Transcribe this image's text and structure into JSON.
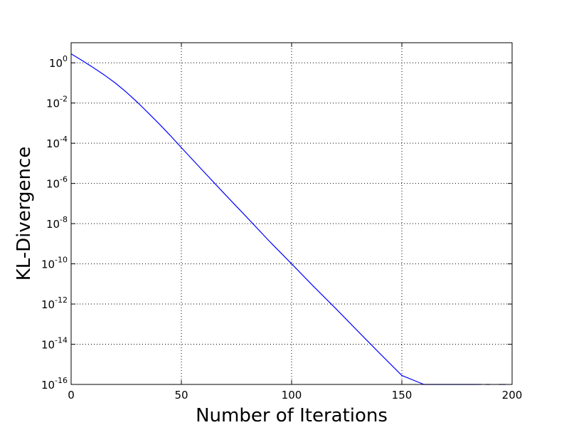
{
  "chart_data": {
    "type": "line",
    "title": "",
    "xlabel": "Number of Iterations",
    "ylabel": "KL-Divergence",
    "xlim": [
      0,
      200
    ],
    "ylim": [
      1e-16,
      10
    ],
    "yscale": "log",
    "grid": true,
    "grid_style": "dotted",
    "line_color": "#0000ff",
    "xticks": [
      {
        "value": 0,
        "label": "0"
      },
      {
        "value": 50,
        "label": "50"
      },
      {
        "value": 100,
        "label": "100"
      },
      {
        "value": 150,
        "label": "150"
      },
      {
        "value": 200,
        "label": "200"
      }
    ],
    "yticks": [
      {
        "value": 1.0,
        "base": "10",
        "exp": "0"
      },
      {
        "value": 0.01,
        "base": "10",
        "exp": "-2"
      },
      {
        "value": 0.0001,
        "base": "10",
        "exp": "-4"
      },
      {
        "value": 1e-06,
        "base": "10",
        "exp": "-6"
      },
      {
        "value": 1e-08,
        "base": "10",
        "exp": "-8"
      },
      {
        "value": 1e-10,
        "base": "10",
        "exp": "-10"
      },
      {
        "value": 1e-12,
        "base": "10",
        "exp": "-12"
      },
      {
        "value": 1e-14,
        "base": "10",
        "exp": "-14"
      },
      {
        "value": 1e-16,
        "base": "10",
        "exp": "-16"
      }
    ],
    "series": [
      {
        "segments": [
          {
            "x": [
              0,
              5,
              10,
              15,
              20,
              25,
              30,
              35,
              40,
              45,
              50,
              60,
              70,
              80,
              90,
              100,
              110,
              120,
              130,
              140,
              150,
              160,
              165,
              170,
              172,
              174,
              176,
              178,
              180,
              182,
              183,
              184
            ],
            "y": [
              2.8,
              1.3,
              0.58,
              0.25,
              0.1,
              0.035,
              0.011,
              0.0032,
              0.0009,
              0.00024,
              6e-05,
              4e-06,
              2.7e-07,
              1.9e-08,
              1.3e-09,
              1e-10,
              7.5e-12,
              6e-13,
              4.5e-14,
              3.5e-15,
              2.8e-16,
              2.4e-17,
              7e-18,
              2.2e-18,
              1.3e-18,
              8e-19,
              4.5e-19,
              2.6e-19,
              1.6e-19,
              9e-20,
              5e-20,
              1e-16
            ]
          },
          {
            "x": [
              184,
              186
            ],
            "y": [
              1e-16,
              1e-16
            ]
          },
          {
            "x": [
              188,
              190
            ],
            "y": [
              1e-16,
              1e-16
            ]
          },
          {
            "x": [
              194,
              197
            ],
            "y": [
              1e-16,
              1e-16
            ]
          }
        ]
      }
    ]
  }
}
